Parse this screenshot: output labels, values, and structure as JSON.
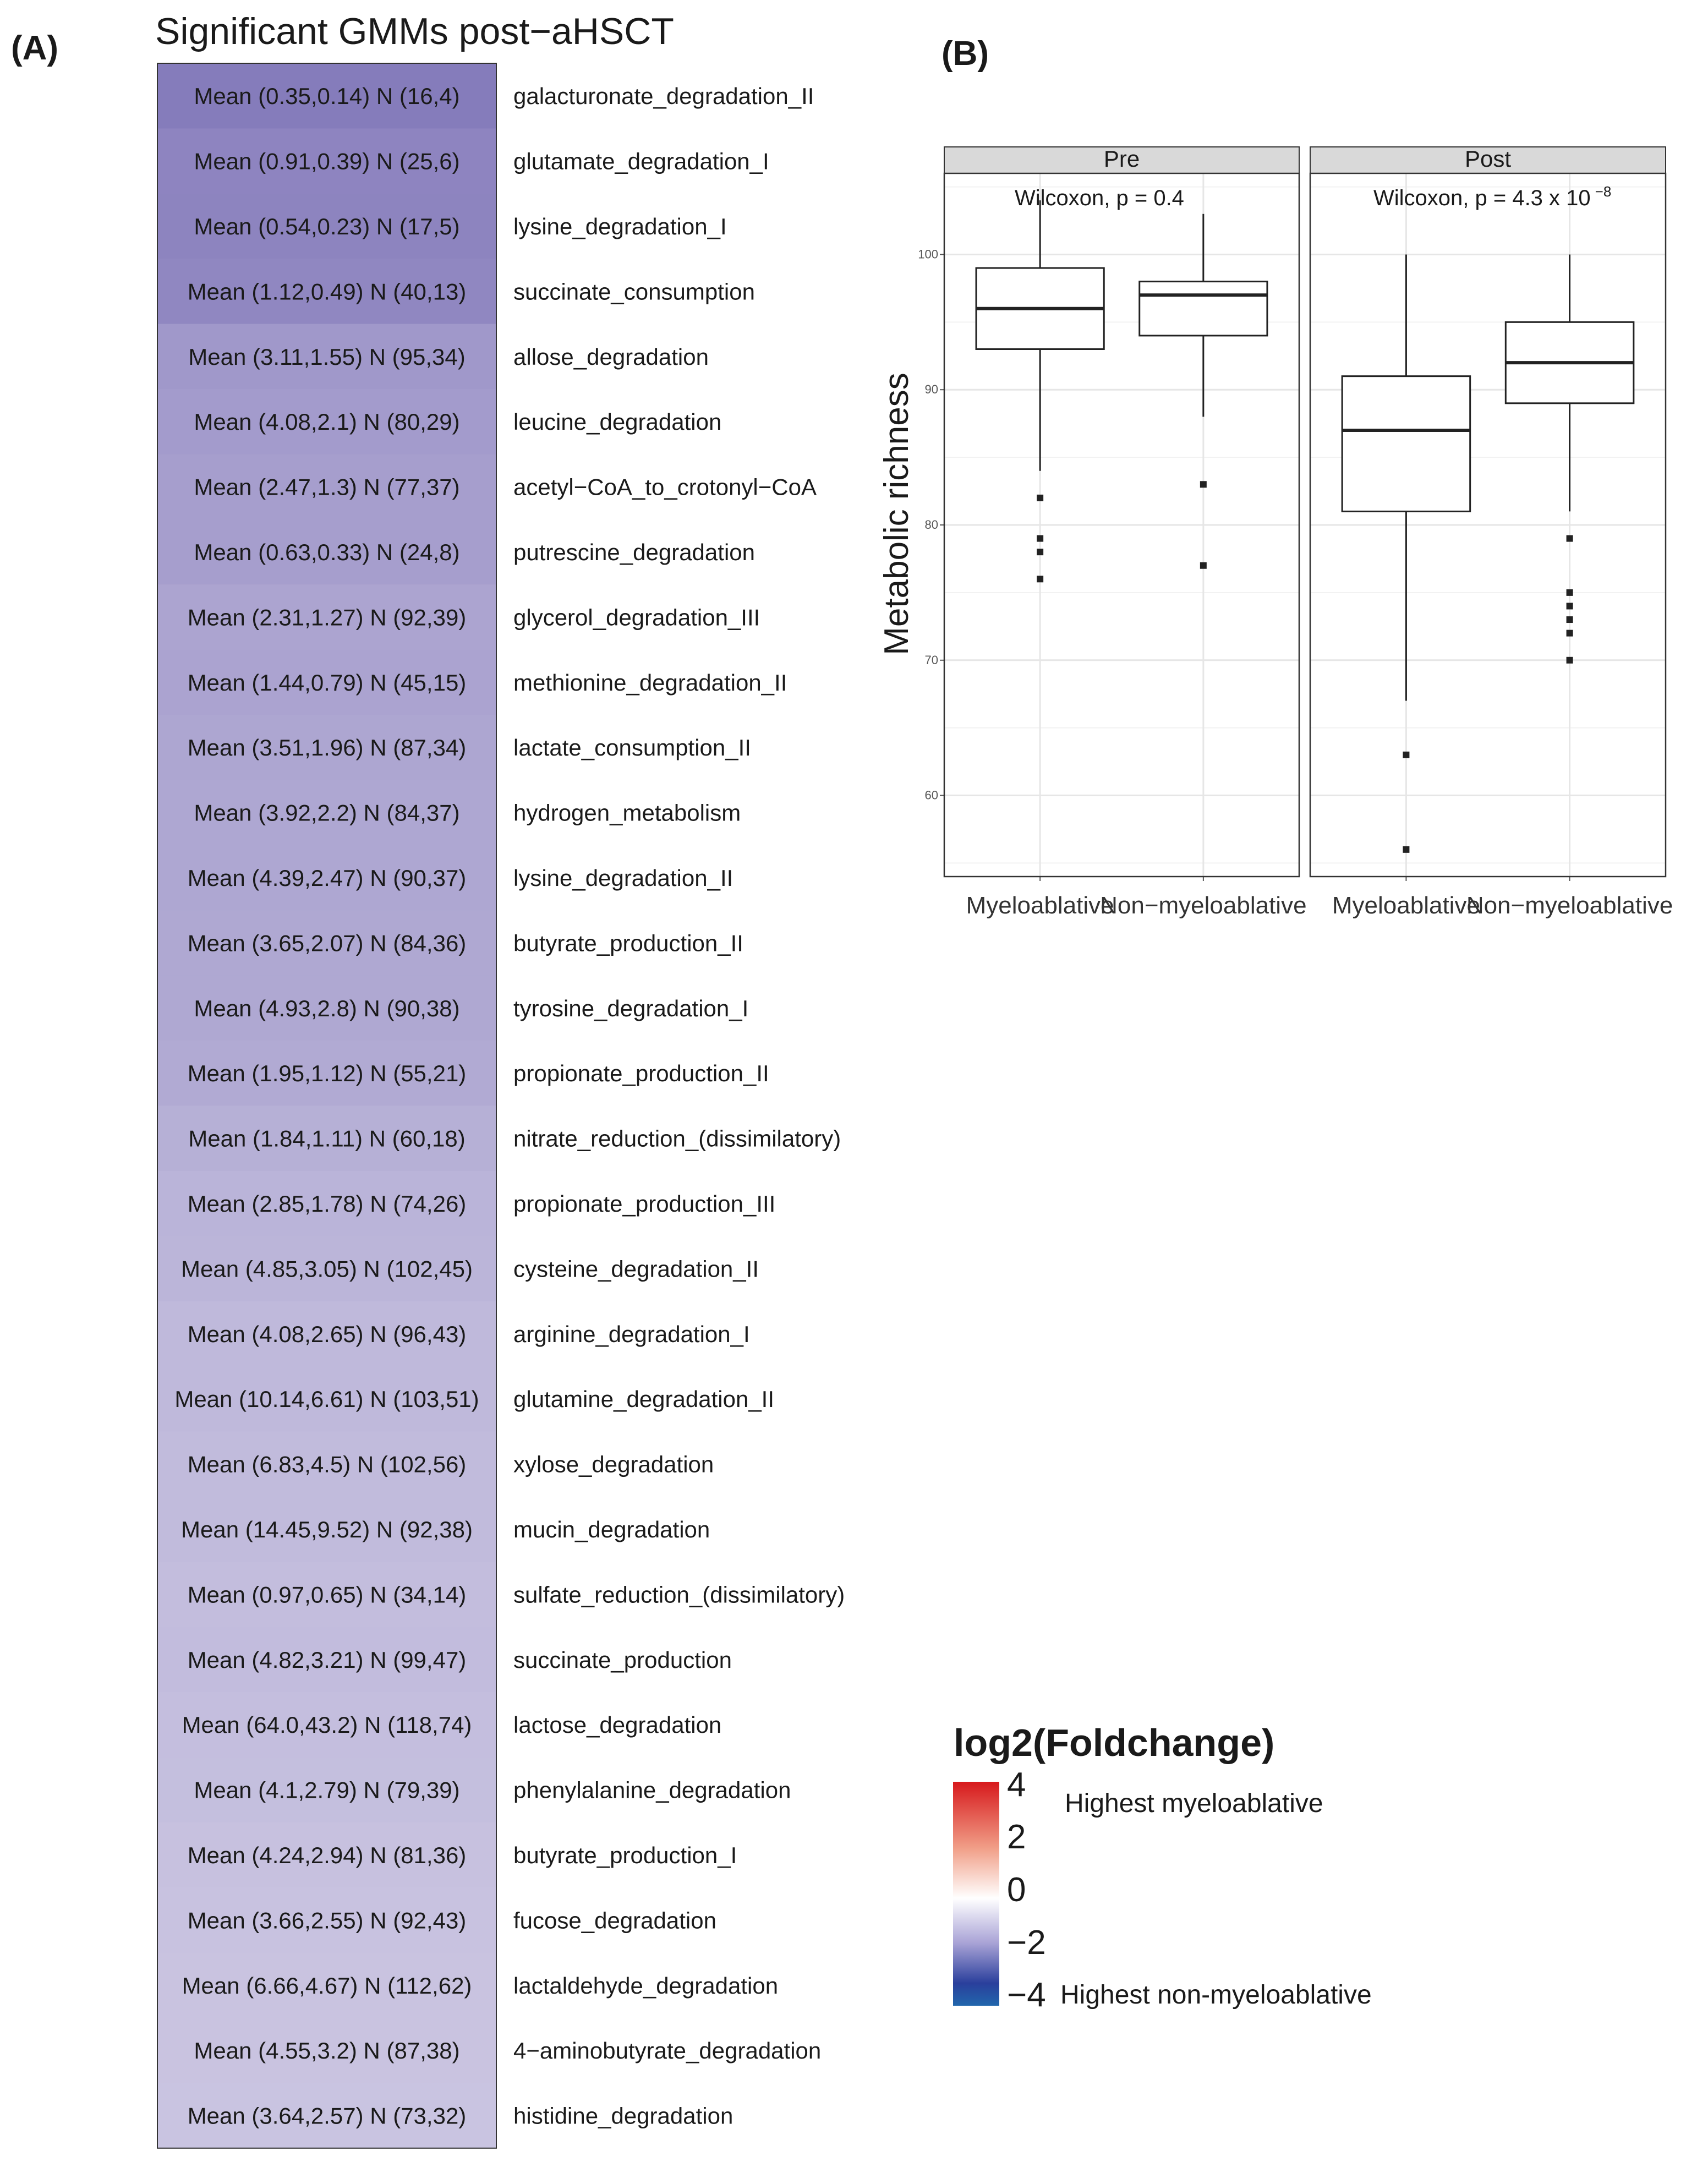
{
  "panel_a": {
    "label": "(A)",
    "title": "Significant GMMs post−aHSCT"
  },
  "panel_b": {
    "label": "(B)"
  },
  "legend": {
    "title": "log2(Foldchange)",
    "ticks": [
      "4",
      "2",
      "0",
      "−2",
      "−4"
    ],
    "high_label": "Highest myeloablative",
    "low_label": "Highest non-myeloablative"
  },
  "chart_data": [
    {
      "type": "heatmap",
      "title": "Significant GMMs post−aHSCT",
      "rows": [
        {
          "module": "galacturonate_degradation_II",
          "label": "Mean (0.35,0.14) N (16,4)",
          "log2fc": -1.32
        },
        {
          "module": "glutamate_degradation_I",
          "label": "Mean (0.91,0.39) N (25,6)",
          "log2fc": -1.22
        },
        {
          "module": "lysine_degradation_I",
          "label": "Mean (0.54,0.23) N (17,5)",
          "log2fc": -1.23
        },
        {
          "module": "succinate_consumption",
          "label": "Mean (1.12,0.49) N (40,13)",
          "log2fc": -1.19
        },
        {
          "module": "allose_degradation",
          "label": "Mean (3.11,1.55) N (95,34)",
          "log2fc": -1.0
        },
        {
          "module": "leucine_degradation",
          "label": "Mean (4.08,2.1) N (80,29)",
          "log2fc": -0.96
        },
        {
          "module": "acetyl−CoA_to_crotonyl−CoA",
          "label": "Mean (2.47,1.3) N (77,37)",
          "log2fc": -0.93
        },
        {
          "module": "putrescine_degradation",
          "label": "Mean (0.63,0.33) N (24,8)",
          "log2fc": -0.93
        },
        {
          "module": "glycerol_degradation_III",
          "label": "Mean (2.31,1.27) N (92,39)",
          "log2fc": -0.86
        },
        {
          "module": "methionine_degradation_II",
          "label": "Mean (1.44,0.79) N (45,15)",
          "log2fc": -0.87
        },
        {
          "module": "lactate_consumption_II",
          "label": "Mean (3.51,1.96) N (87,34)",
          "log2fc": -0.84
        },
        {
          "module": "hydrogen_metabolism",
          "label": "Mean (3.92,2.2) N (84,37)",
          "log2fc": -0.83
        },
        {
          "module": "lysine_degradation_II",
          "label": "Mean (4.39,2.47) N (90,37)",
          "log2fc": -0.83
        },
        {
          "module": "butyrate_production_II",
          "label": "Mean (3.65,2.07) N (84,36)",
          "log2fc": -0.82
        },
        {
          "module": "tyrosine_degradation_I",
          "label": "Mean (4.93,2.8) N (90,38)",
          "log2fc": -0.82
        },
        {
          "module": "propionate_production_II",
          "label": "Mean (1.95,1.12) N (55,21)",
          "log2fc": -0.8
        },
        {
          "module": "nitrate_reduction_(dissimilatory)",
          "label": "Mean (1.84,1.11) N (60,18)",
          "log2fc": -0.73
        },
        {
          "module": "propionate_production_III",
          "label": "Mean (2.85,1.78) N (74,26)",
          "log2fc": -0.68
        },
        {
          "module": "cysteine_degradation_II",
          "label": "Mean (4.85,3.05) N (102,45)",
          "log2fc": -0.67
        },
        {
          "module": "arginine_degradation_I",
          "label": "Mean (4.08,2.65) N (96,43)",
          "log2fc": -0.62
        },
        {
          "module": "glutamine_degradation_II",
          "label": "Mean (10.14,6.61) N (103,51)",
          "log2fc": -0.62
        },
        {
          "module": "xylose_degradation",
          "label": "Mean (6.83,4.5) N (102,56)",
          "log2fc": -0.6
        },
        {
          "module": "mucin_degradation",
          "label": "Mean (14.45,9.52) N (92,38)",
          "log2fc": -0.6
        },
        {
          "module": "sulfate_reduction_(dissimilatory)",
          "label": "Mean (0.97,0.65) N (34,14)",
          "log2fc": -0.58
        },
        {
          "module": "succinate_production",
          "label": "Mean (4.82,3.21) N (99,47)",
          "log2fc": -0.59
        },
        {
          "module": "lactose_degradation",
          "label": "Mean (64.0,43.2) N (118,74)",
          "log2fc": -0.57
        },
        {
          "module": "phenylalanine_degradation",
          "label": "Mean (4.1,2.79) N (79,39)",
          "log2fc": -0.56
        },
        {
          "module": "butyrate_production_I",
          "label": "Mean (4.24,2.94) N (81,36)",
          "log2fc": -0.53
        },
        {
          "module": "fucose_degradation",
          "label": "Mean (3.66,2.55) N (92,43)",
          "log2fc": -0.52
        },
        {
          "module": "lactaldehyde_degradation",
          "label": "Mean (6.66,4.67) N (112,62)",
          "log2fc": -0.51
        },
        {
          "module": "4−aminobutyrate_degradation",
          "label": "Mean (4.55,3.2) N (87,38)",
          "log2fc": -0.51
        },
        {
          "module": "histidine_degradation",
          "label": "Mean (3.64,2.57) N (73,32)",
          "log2fc": -0.5
        }
      ],
      "color_scale": {
        "min": -4,
        "max": 4,
        "low_color": "#2166ac",
        "mid_color": "#ffffff",
        "high_color": "#d7191c"
      }
    },
    {
      "type": "boxplot",
      "ylabel": "Metabolic richness",
      "xlabel": "",
      "ylim": [
        54,
        106
      ],
      "yticks": [
        60,
        70,
        80,
        90,
        100
      ],
      "grid": true,
      "facets": [
        {
          "strip": "Pre",
          "annotation": "Wilcoxon, p = 0.4",
          "annotation_exp": "",
          "groups": [
            {
              "name": "Myeloablative",
              "whisker_low": 84,
              "q1": 93,
              "median": 96,
              "q3": 99,
              "whisker_high": 104,
              "outliers": [
                82,
                79,
                78,
                76
              ]
            },
            {
              "name": "Non−myeloablative",
              "whisker_low": 88,
              "q1": 94,
              "median": 97,
              "q3": 98,
              "whisker_high": 103,
              "outliers": [
                83,
                77
              ]
            }
          ]
        },
        {
          "strip": "Post",
          "annotation": "Wilcoxon, p = 4.3 x 10",
          "annotation_exp": "−8",
          "groups": [
            {
              "name": "Myeloablative",
              "whisker_low": 67,
              "q1": 81,
              "median": 87,
              "q3": 91,
              "whisker_high": 100,
              "outliers": [
                63,
                56
              ]
            },
            {
              "name": "Non−myeloablative",
              "whisker_low": 81,
              "q1": 89,
              "median": 92,
              "q3": 95,
              "whisker_high": 100,
              "outliers": [
                79,
                75,
                74,
                73,
                72,
                70
              ]
            }
          ]
        }
      ]
    }
  ]
}
